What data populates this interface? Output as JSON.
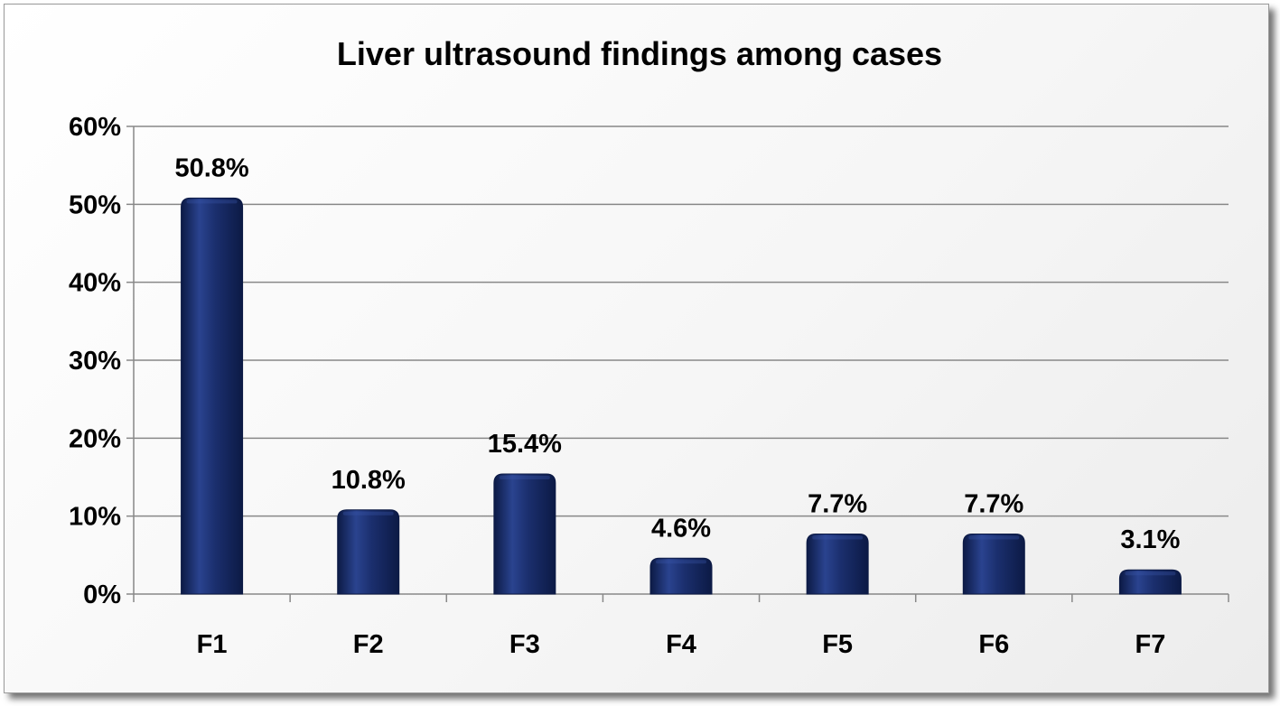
{
  "chart_data": {
    "type": "bar",
    "title": "Liver ultrasound findings among cases",
    "xlabel": "",
    "ylabel": "",
    "categories": [
      "F1",
      "F2",
      "F3",
      "F4",
      "F5",
      "F6",
      "F7"
    ],
    "values": [
      50.8,
      10.8,
      15.4,
      4.6,
      7.7,
      7.7,
      3.1
    ],
    "data_labels": [
      "50.8%",
      "10.8%",
      "15.4%",
      "4.6%",
      "7.7%",
      "7.7%",
      "3.1%"
    ],
    "y_ticks": [
      0,
      10,
      20,
      30,
      40,
      50,
      60
    ],
    "y_tick_labels": [
      "0%",
      "10%",
      "20%",
      "30%",
      "40%",
      "50%",
      "60%"
    ],
    "ylim": [
      0,
      60
    ],
    "grid": true,
    "legend": "none",
    "colors": {
      "bar": "#1b2f6e",
      "bar_dark": "#0c1a45",
      "bar_light": "#3a56a8",
      "grid": "#888888",
      "axis": "#888888"
    }
  }
}
